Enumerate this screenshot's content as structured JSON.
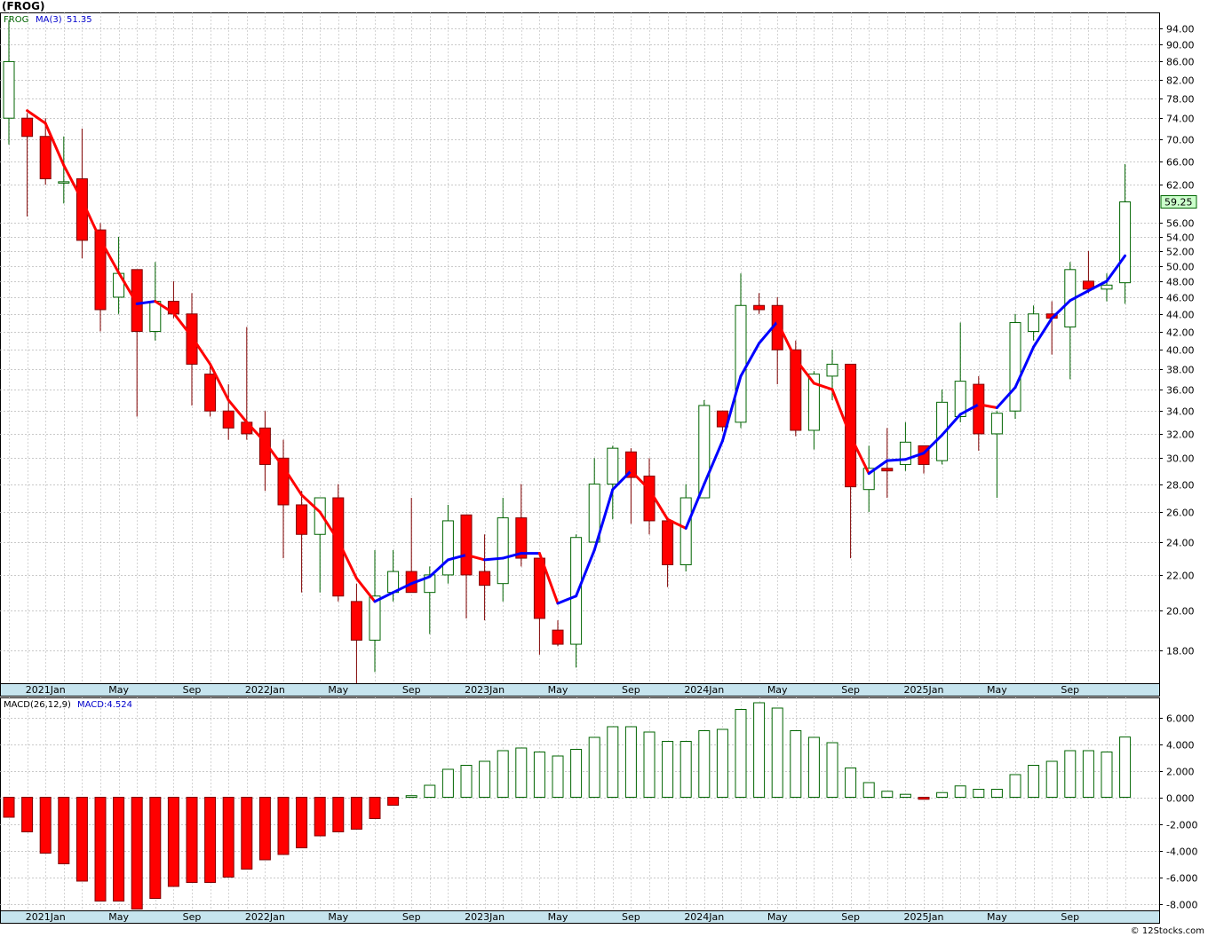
{
  "header": {
    "title": "(FROG)",
    "copyright": "© 12Stocks.com"
  },
  "colors": {
    "up_body": "#ffffff",
    "up_border": "#006400",
    "down_body": "#ff0000",
    "down_border": "#800000",
    "ma_up": "#0000ff",
    "ma_down": "#ff0000",
    "grid": "#b8b8b8",
    "axis_band": "#c6e4ee",
    "last_price_bg": "#ccffcc"
  },
  "chart_data": [
    {
      "type": "candlestick",
      "panel": "price",
      "ticker": "FROG",
      "indicator_label": "MA(3)",
      "indicator_value": "51.35",
      "last_price_label": "59.25",
      "scale": "log",
      "ylim": [
        16.5,
        98
      ],
      "y_ticks": [
        "18.00",
        "20.00",
        "22.00",
        "24.00",
        "26.00",
        "28.00",
        "30.00",
        "32.00",
        "34.00",
        "36.00",
        "38.00",
        "40.00",
        "42.00",
        "44.00",
        "46.00",
        "48.00",
        "50.00",
        "52.00",
        "54.00",
        "56.00",
        "62.00",
        "66.00",
        "70.00",
        "74.00",
        "78.00",
        "82.00",
        "86.00",
        "90.00",
        "94.00"
      ],
      "x_ticks": [
        "2021Jan",
        "May",
        "Sep",
        "2022Jan",
        "May",
        "Sep",
        "2023Jan",
        "May",
        "Sep",
        "2024Jan",
        "May",
        "Sep",
        "2025Jan",
        "May",
        "Sep"
      ],
      "candles": [
        {
          "o": 74.0,
          "h": 96.0,
          "l": 69.0,
          "c": 86.0
        },
        {
          "o": 74.0,
          "h": 75.0,
          "l": 57.0,
          "c": 70.5
        },
        {
          "o": 70.5,
          "h": 74.0,
          "l": 62.0,
          "c": 63.0
        },
        {
          "o": 62.5,
          "h": 70.5,
          "l": 59.0,
          "c": 62.5
        },
        {
          "o": 63.0,
          "h": 72.0,
          "l": 51.0,
          "c": 53.5
        },
        {
          "o": 55.0,
          "h": 56.0,
          "l": 42.0,
          "c": 44.5
        },
        {
          "o": 46.0,
          "h": 54.0,
          "l": 44.0,
          "c": 49.0
        },
        {
          "o": 49.5,
          "h": 49.5,
          "l": 33.5,
          "c": 42.0
        },
        {
          "o": 42.0,
          "h": 50.5,
          "l": 41.0,
          "c": 45.5
        },
        {
          "o": 45.5,
          "h": 48.0,
          "l": 43.5,
          "c": 44.0
        },
        {
          "o": 44.0,
          "h": 46.5,
          "l": 34.5,
          "c": 38.5
        },
        {
          "o": 37.5,
          "h": 38.5,
          "l": 33.5,
          "c": 34.0
        },
        {
          "o": 34.0,
          "h": 36.5,
          "l": 31.5,
          "c": 32.5
        },
        {
          "o": 33.0,
          "h": 42.5,
          "l": 31.5,
          "c": 32.0
        },
        {
          "o": 32.5,
          "h": 34.0,
          "l": 27.5,
          "c": 29.5
        },
        {
          "o": 30.0,
          "h": 31.5,
          "l": 23.0,
          "c": 26.5
        },
        {
          "o": 26.5,
          "h": 27.5,
          "l": 21.0,
          "c": 24.5
        },
        {
          "o": 24.5,
          "h": 27.0,
          "l": 21.0,
          "c": 27.0
        },
        {
          "o": 27.0,
          "h": 28.0,
          "l": 20.5,
          "c": 20.8
        },
        {
          "o": 20.5,
          "h": 21.5,
          "l": 16.5,
          "c": 18.5
        },
        {
          "o": 18.5,
          "h": 23.5,
          "l": 17.0,
          "c": 20.8
        },
        {
          "o": 21.0,
          "h": 23.5,
          "l": 20.5,
          "c": 22.2
        },
        {
          "o": 22.2,
          "h": 27.0,
          "l": 21.0,
          "c": 21.0
        },
        {
          "o": 21.0,
          "h": 22.5,
          "l": 18.8,
          "c": 22.0
        },
        {
          "o": 22.0,
          "h": 26.5,
          "l": 21.5,
          "c": 25.4
        },
        {
          "o": 25.8,
          "h": 25.8,
          "l": 19.6,
          "c": 22.0
        },
        {
          "o": 22.2,
          "h": 24.5,
          "l": 19.5,
          "c": 21.4
        },
        {
          "o": 21.5,
          "h": 27.0,
          "l": 20.5,
          "c": 25.6
        },
        {
          "o": 25.6,
          "h": 28.0,
          "l": 22.5,
          "c": 23.0
        },
        {
          "o": 23.0,
          "h": 23.0,
          "l": 17.8,
          "c": 19.6
        },
        {
          "o": 19.0,
          "h": 19.5,
          "l": 18.2,
          "c": 18.3
        },
        {
          "o": 18.3,
          "h": 24.5,
          "l": 17.2,
          "c": 24.3
        },
        {
          "o": 24.0,
          "h": 30.0,
          "l": 24.0,
          "c": 28.0
        },
        {
          "o": 28.0,
          "h": 31.0,
          "l": 25.5,
          "c": 30.8
        },
        {
          "o": 30.5,
          "h": 30.8,
          "l": 25.2,
          "c": 28.5
        },
        {
          "o": 28.6,
          "h": 30.0,
          "l": 24.5,
          "c": 25.4
        },
        {
          "o": 25.4,
          "h": 25.4,
          "l": 21.3,
          "c": 22.6
        },
        {
          "o": 22.6,
          "h": 28.0,
          "l": 22.2,
          "c": 27.0
        },
        {
          "o": 27.0,
          "h": 35.0,
          "l": 27.0,
          "c": 34.5
        },
        {
          "o": 34.0,
          "h": 34.0,
          "l": 32.2,
          "c": 32.6
        },
        {
          "o": 33.0,
          "h": 49.0,
          "l": 32.5,
          "c": 45.0
        },
        {
          "o": 45.0,
          "h": 46.5,
          "l": 44.0,
          "c": 44.5
        },
        {
          "o": 45.0,
          "h": 46.0,
          "l": 36.5,
          "c": 40.0
        },
        {
          "o": 40.0,
          "h": 41.0,
          "l": 31.8,
          "c": 32.3
        },
        {
          "o": 32.3,
          "h": 37.8,
          "l": 30.7,
          "c": 37.5
        },
        {
          "o": 37.3,
          "h": 40.0,
          "l": 35.0,
          "c": 38.5
        },
        {
          "o": 38.5,
          "h": 38.5,
          "l": 23.0,
          "c": 27.8
        },
        {
          "o": 27.6,
          "h": 31.0,
          "l": 26.0,
          "c": 29.2
        },
        {
          "o": 29.2,
          "h": 32.5,
          "l": 27.0,
          "c": 29.0
        },
        {
          "o": 29.5,
          "h": 33.0,
          "l": 29.0,
          "c": 31.3
        },
        {
          "o": 31.0,
          "h": 31.0,
          "l": 28.8,
          "c": 29.5
        },
        {
          "o": 29.8,
          "h": 36.0,
          "l": 29.5,
          "c": 34.8
        },
        {
          "o": 33.5,
          "h": 43.0,
          "l": 33.0,
          "c": 36.8
        },
        {
          "o": 36.5,
          "h": 37.3,
          "l": 30.6,
          "c": 32.0
        },
        {
          "o": 32.0,
          "h": 34.0,
          "l": 27.0,
          "c": 33.8
        },
        {
          "o": 34.0,
          "h": 44.0,
          "l": 33.3,
          "c": 43.0
        },
        {
          "o": 42.0,
          "h": 45.0,
          "l": 41.0,
          "c": 44.0
        },
        {
          "o": 44.0,
          "h": 45.5,
          "l": 39.5,
          "c": 43.5
        },
        {
          "o": 42.5,
          "h": 50.5,
          "l": 37.0,
          "c": 49.5
        },
        {
          "o": 48.0,
          "h": 52.0,
          "l": 46.5,
          "c": 47.0
        },
        {
          "o": 47.0,
          "h": 49.0,
          "l": 45.5,
          "c": 47.5
        },
        {
          "o": 47.8,
          "h": 65.5,
          "l": 45.2,
          "c": 59.25
        }
      ],
      "ma3": [
        null,
        75.5,
        73.0,
        65.3,
        59.5,
        53.6,
        49.1,
        45.2,
        45.5,
        44.1,
        41.4,
        38.5,
        35.0,
        33.0,
        31.3,
        29.3,
        27.2,
        26.0,
        24.1,
        21.8,
        20.5,
        21.0,
        21.5,
        21.9,
        22.9,
        23.2,
        22.9,
        23.0,
        23.3,
        23.3,
        20.4,
        20.8,
        23.5,
        27.6,
        29.0,
        27.6,
        25.5,
        24.9,
        28.0,
        31.4,
        37.3,
        40.7,
        43.1,
        39.0,
        36.6,
        36.0,
        31.8,
        28.8,
        29.8,
        29.9,
        30.4,
        31.9,
        33.7,
        34.6,
        34.3,
        36.2,
        40.3,
        43.5,
        45.6,
        46.8,
        48.0,
        51.35
      ]
    },
    {
      "type": "bar",
      "panel": "macd",
      "indicator_label": "MACD(26,12,9)",
      "indicator_value_label": "MACD:4.524",
      "ylim": [
        -8.5,
        7.5
      ],
      "y_ticks": [
        "-8.000",
        "-6.000",
        "-4.000",
        "-2.000",
        "0.000",
        "2.000",
        "4.000",
        "6.000"
      ],
      "x_ticks": [
        "2021Jan",
        "May",
        "Sep",
        "2022Jan",
        "May",
        "Sep",
        "2023Jan",
        "May",
        "Sep",
        "2024Jan",
        "May",
        "Sep",
        "2025Jan",
        "May",
        "Sep"
      ],
      "values": [
        -1.5,
        -2.6,
        -4.2,
        -5.0,
        -6.3,
        -7.8,
        -7.8,
        -8.4,
        -7.6,
        -6.7,
        -6.4,
        -6.4,
        -6.0,
        -5.4,
        -4.7,
        -4.3,
        -3.8,
        -2.9,
        -2.6,
        -2.4,
        -1.6,
        -0.6,
        0.12,
        0.9,
        2.1,
        2.4,
        2.7,
        3.5,
        3.7,
        3.4,
        3.1,
        3.6,
        4.5,
        5.3,
        5.3,
        4.9,
        4.2,
        4.2,
        5.0,
        5.1,
        6.6,
        7.1,
        6.7,
        5.0,
        4.5,
        4.1,
        2.2,
        1.1,
        0.45,
        0.22,
        -0.15,
        0.35,
        0.85,
        0.6,
        0.6,
        1.7,
        2.4,
        2.7,
        3.5,
        3.5,
        3.4,
        4.524
      ]
    }
  ]
}
